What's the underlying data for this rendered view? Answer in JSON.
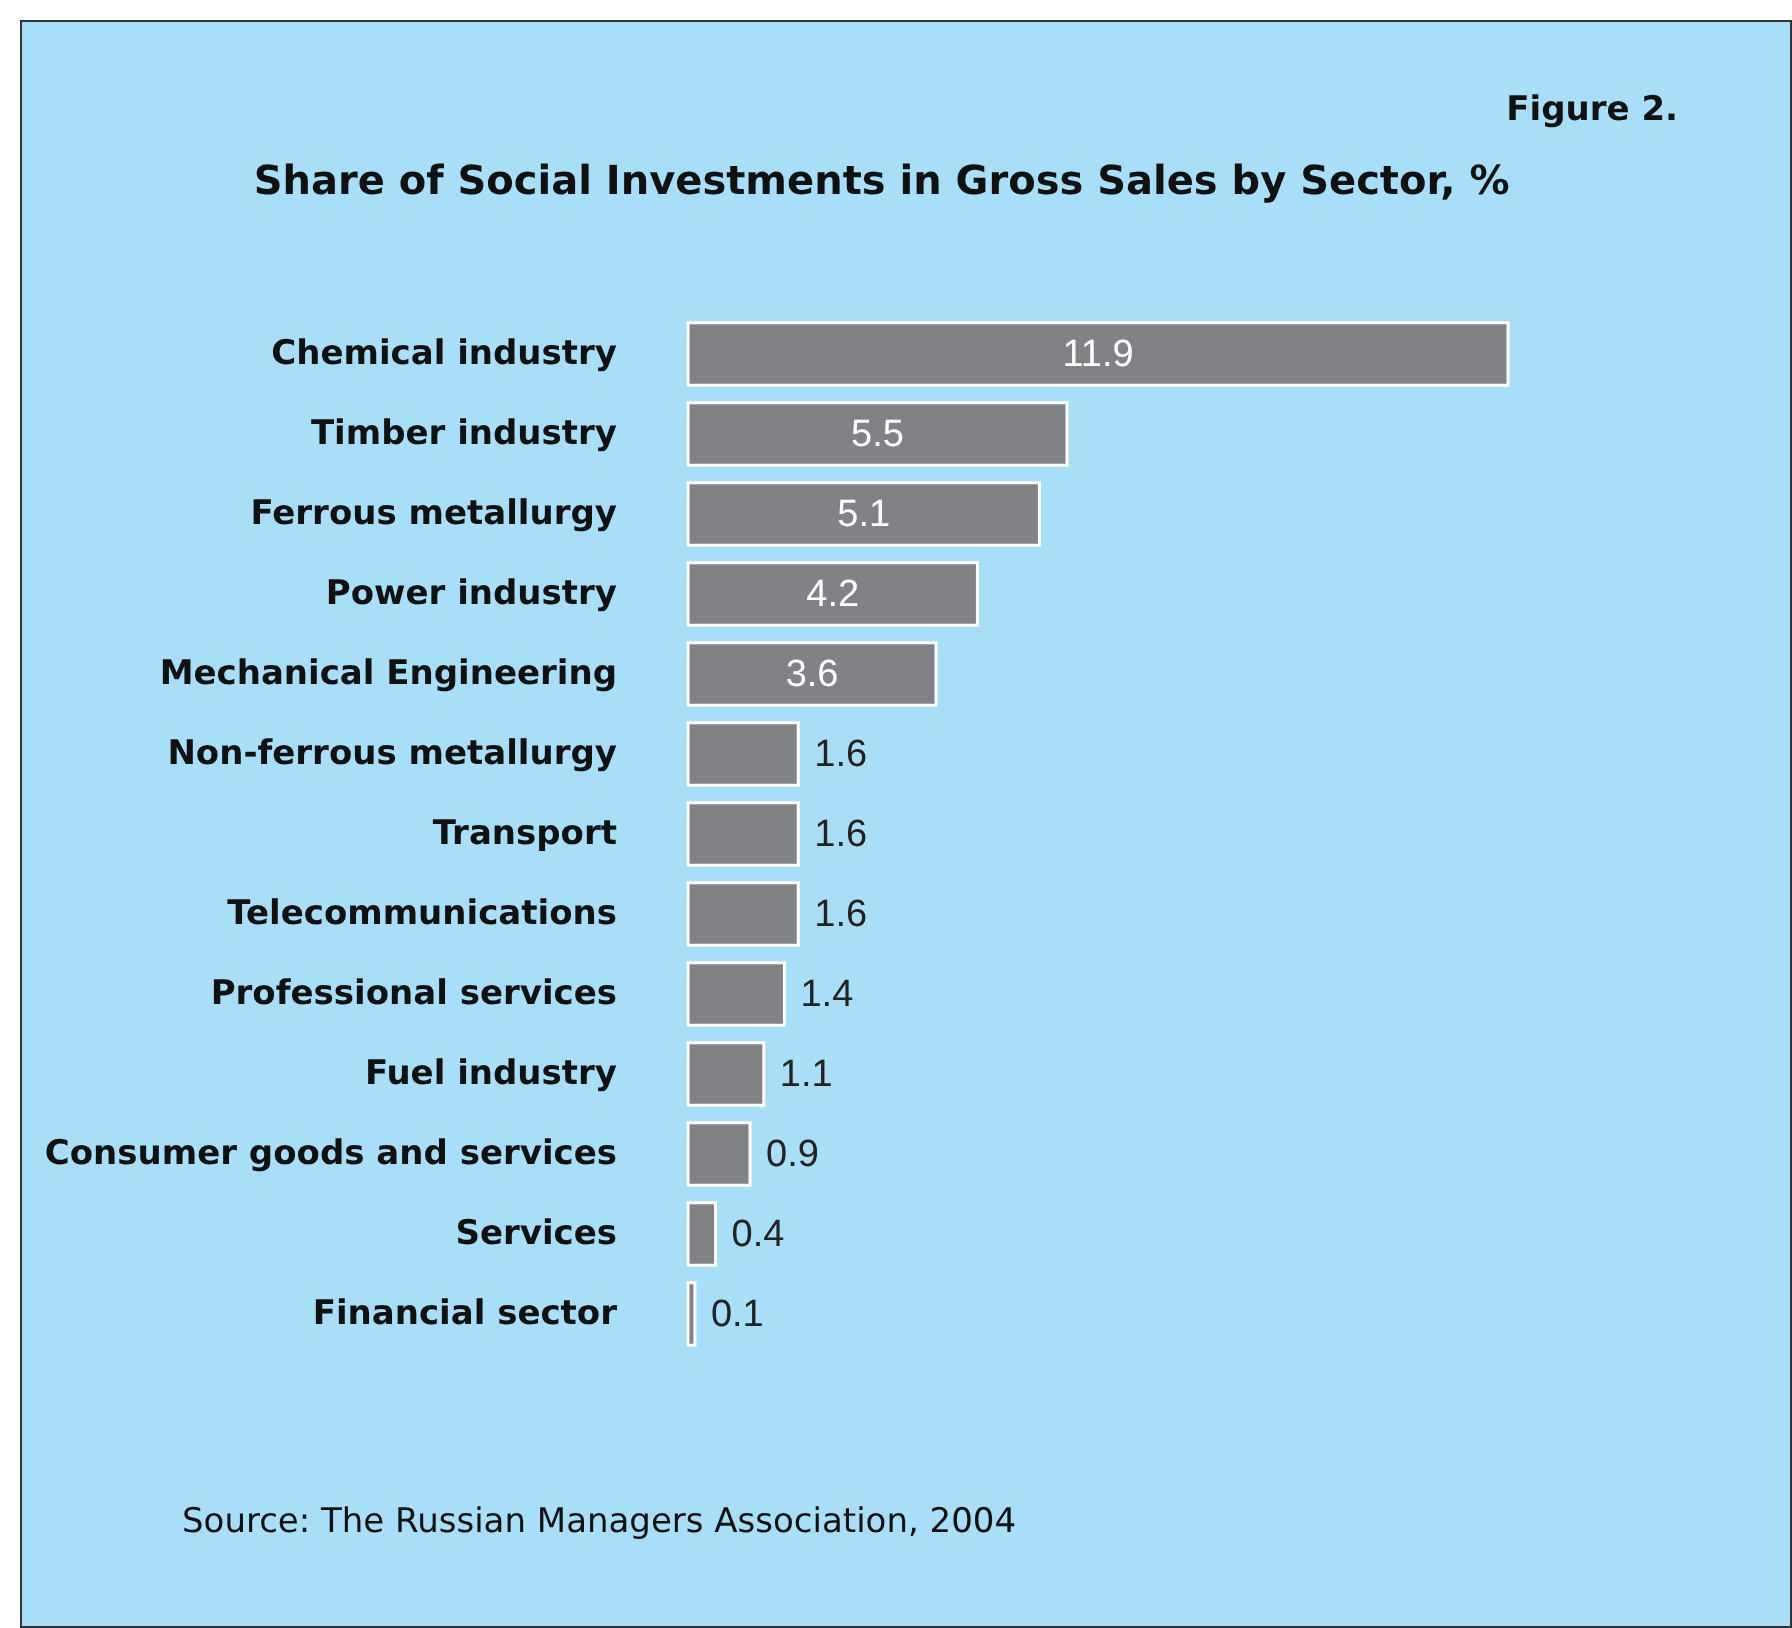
{
  "chart_data": {
    "type": "bar",
    "orientation": "horizontal",
    "title": "Share of Social Investments in Gross Sales by Sector, %",
    "categories": [
      "Chemical industry",
      "Timber industry",
      "Ferrous metallurgy",
      "Power industry",
      "Mechanical Engineering",
      "Non-ferrous metallurgy",
      "Transport",
      "Telecommunications",
      "Professional services",
      "Fuel industry",
      "Consumer goods and services",
      "Services",
      "Financial sector"
    ],
    "values": [
      11.9,
      5.5,
      5.1,
      4.2,
      3.6,
      1.6,
      1.6,
      1.6,
      1.4,
      1.1,
      0.9,
      0.4,
      0.1
    ],
    "color": "#818285",
    "data_labels": true,
    "grid": false,
    "annotations": [
      "Figure 2.",
      "Source: The Russian Managers Association, 2004"
    ]
  }
}
